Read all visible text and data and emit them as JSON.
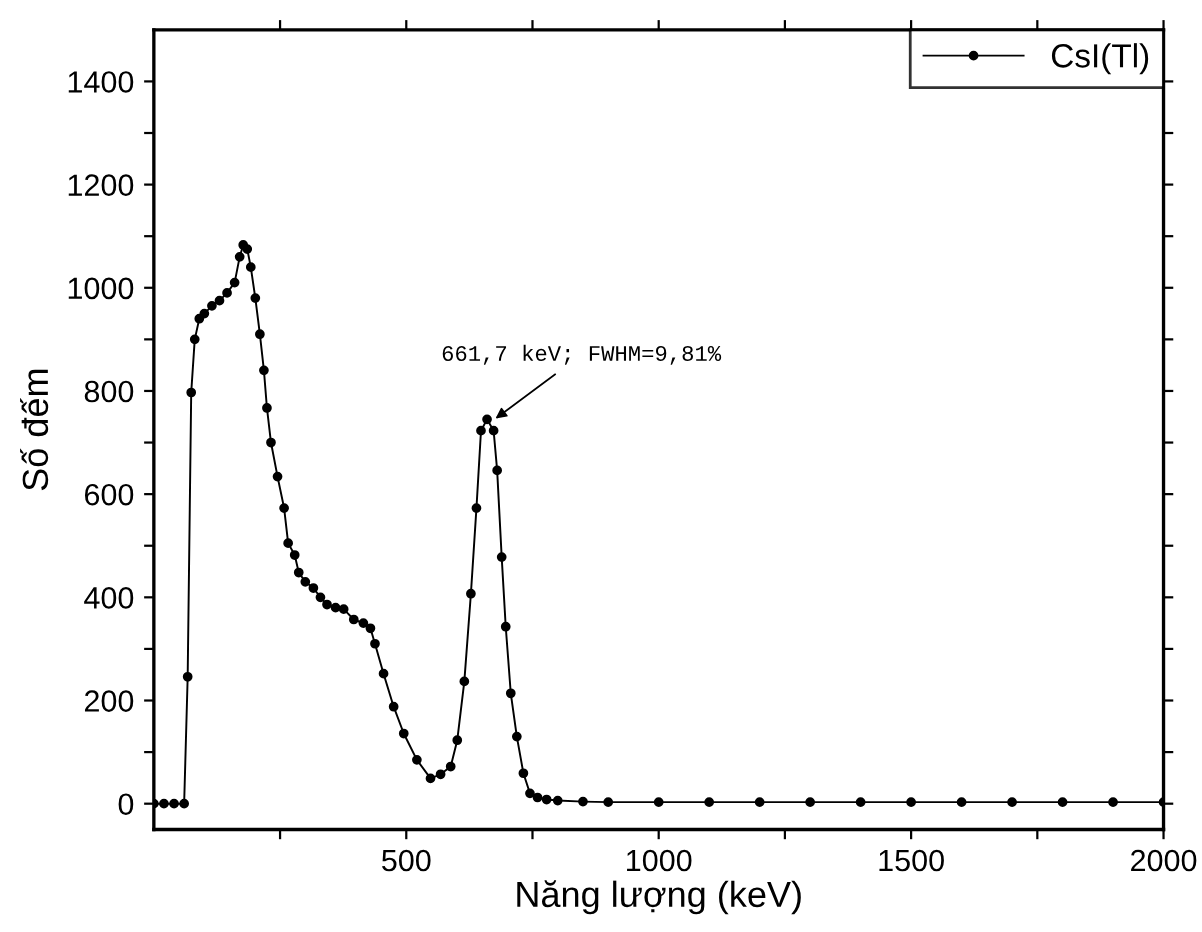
{
  "chart_data": {
    "type": "line",
    "xlabel": "Năng lượng (keV)",
    "ylabel": "Số đếm",
    "xlim": [
      0,
      2000
    ],
    "ylim": [
      -50,
      1500
    ],
    "xticks": [
      {
        "value": 250,
        "label": null
      },
      500,
      {
        "value": 750,
        "label": null
      },
      1000,
      {
        "value": 1250,
        "label": null
      },
      1500,
      {
        "value": 1750,
        "label": null
      },
      2000
    ],
    "yticks": [
      0,
      {
        "value": 100,
        "label": null
      },
      200,
      {
        "value": 300,
        "label": null
      },
      400,
      {
        "value": 500,
        "label": null
      },
      600,
      {
        "value": 700,
        "label": null
      },
      800,
      {
        "value": 900,
        "label": null
      },
      1000,
      {
        "value": 1100,
        "label": null
      },
      1200,
      {
        "value": 1300,
        "label": null
      },
      1400
    ],
    "marker": "circle",
    "line_style": "solid",
    "grid": false,
    "legend": "top right",
    "annotations": [
      {
        "text": "661,7 keV; FWHM=9,81%",
        "x": 668,
        "y": 740
      }
    ],
    "series": [
      {
        "name": "CsI(Tl)",
        "color": "#000000",
        "x": [
          0,
          20,
          40,
          60,
          67,
          74,
          81,
          90,
          100,
          115,
          130,
          145,
          160,
          170,
          177,
          185,
          192,
          201,
          210,
          218,
          224,
          232,
          245,
          258,
          266,
          279,
          287,
          300,
          316,
          330,
          343,
          360,
          376,
          396,
          415,
          429,
          438,
          455,
          475,
          495,
          521,
          548,
          568,
          588,
          601,
          615,
          628,
          639,
          648,
          660,
          673,
          680,
          689,
          697,
          707,
          719,
          732,
          745,
          760,
          778,
          800,
          850,
          900,
          1000,
          1100,
          1200,
          1300,
          1400,
          1500,
          1600,
          1700,
          1800,
          1900,
          2000
        ],
        "values": [
          0,
          0,
          0,
          0,
          246,
          797,
          900,
          940,
          950,
          965,
          975,
          990,
          1010,
          1060,
          1083,
          1075,
          1040,
          980,
          910,
          840,
          767,
          700,
          634,
          573,
          505,
          482,
          448,
          430,
          418,
          400,
          386,
          380,
          377,
          357,
          350,
          340,
          310,
          252,
          188,
          136,
          85,
          49,
          57,
          72,
          123,
          237,
          407,
          573,
          723,
          745,
          723,
          646,
          478,
          343,
          214,
          130,
          59,
          20,
          12,
          8,
          6,
          4,
          3,
          3,
          3,
          3,
          3,
          3,
          3,
          3,
          3,
          3,
          3,
          3
        ]
      }
    ]
  }
}
